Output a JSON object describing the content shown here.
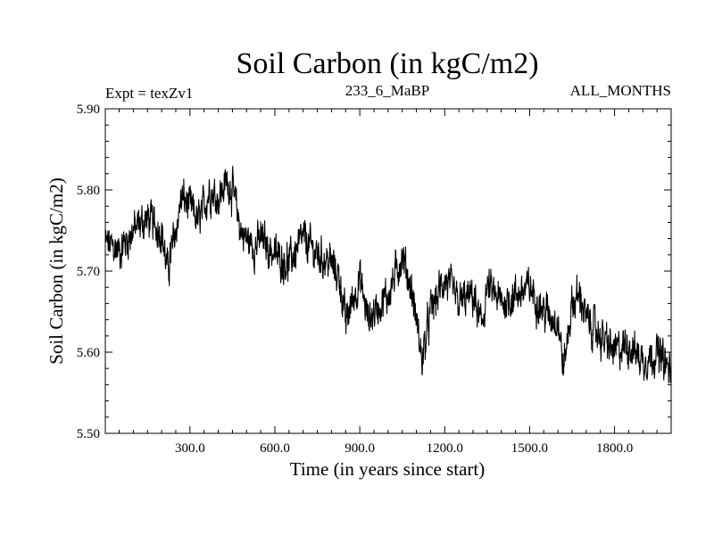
{
  "chart_data": {
    "type": "line",
    "title": "Soil Carbon (in kgC/m2)",
    "subtitle_left": "Expt = texZv1",
    "subtitle_center": "233_6_MaBP",
    "subtitle_right": "ALL_MONTHS",
    "xlabel": "Time (in years since start)",
    "ylabel": "Soil Carbon (in kgC/m2)",
    "xlim": [
      1,
      2000
    ],
    "ylim": [
      5.5,
      5.9
    ],
    "x_ticks": [
      {
        "value": 300,
        "label": "300.0"
      },
      {
        "value": 600,
        "label": "600.0"
      },
      {
        "value": 900,
        "label": "900.0"
      },
      {
        "value": 1200,
        "label": "1200.0"
      },
      {
        "value": 1500,
        "label": "1500.0"
      },
      {
        "value": 1800,
        "label": "1800.0"
      }
    ],
    "y_ticks": [
      {
        "value": 5.5,
        "label": "5.50"
      },
      {
        "value": 5.6,
        "label": "5.60"
      },
      {
        "value": 5.7,
        "label": "5.70"
      },
      {
        "value": 5.8,
        "label": "5.80"
      },
      {
        "value": 5.9,
        "label": "5.90"
      }
    ],
    "series": [
      {
        "name": "Soil Carbon",
        "color": "#000000",
        "x": [
          1,
          50,
          100,
          150,
          200,
          220,
          250,
          270,
          300,
          330,
          350,
          370,
          400,
          430,
          450,
          480,
          500,
          530,
          550,
          600,
          650,
          700,
          750,
          800,
          830,
          850,
          870,
          900,
          930,
          950,
          1000,
          1050,
          1080,
          1100,
          1120,
          1150,
          1200,
          1250,
          1300,
          1330,
          1350,
          1400,
          1450,
          1500,
          1550,
          1600,
          1620,
          1650,
          1680,
          1700,
          1750,
          1800,
          1850,
          1900,
          1950,
          2000
        ],
        "values": [
          5.735,
          5.725,
          5.75,
          5.765,
          5.75,
          5.7,
          5.75,
          5.79,
          5.78,
          5.76,
          5.78,
          5.8,
          5.79,
          5.81,
          5.8,
          5.75,
          5.74,
          5.73,
          5.74,
          5.72,
          5.71,
          5.74,
          5.72,
          5.71,
          5.69,
          5.635,
          5.66,
          5.69,
          5.64,
          5.65,
          5.67,
          5.72,
          5.68,
          5.64,
          5.59,
          5.65,
          5.69,
          5.66,
          5.67,
          5.63,
          5.68,
          5.66,
          5.67,
          5.68,
          5.65,
          5.64,
          5.58,
          5.66,
          5.67,
          5.64,
          5.62,
          5.6,
          5.61,
          5.59,
          5.6,
          5.575
        ]
      }
    ]
  }
}
